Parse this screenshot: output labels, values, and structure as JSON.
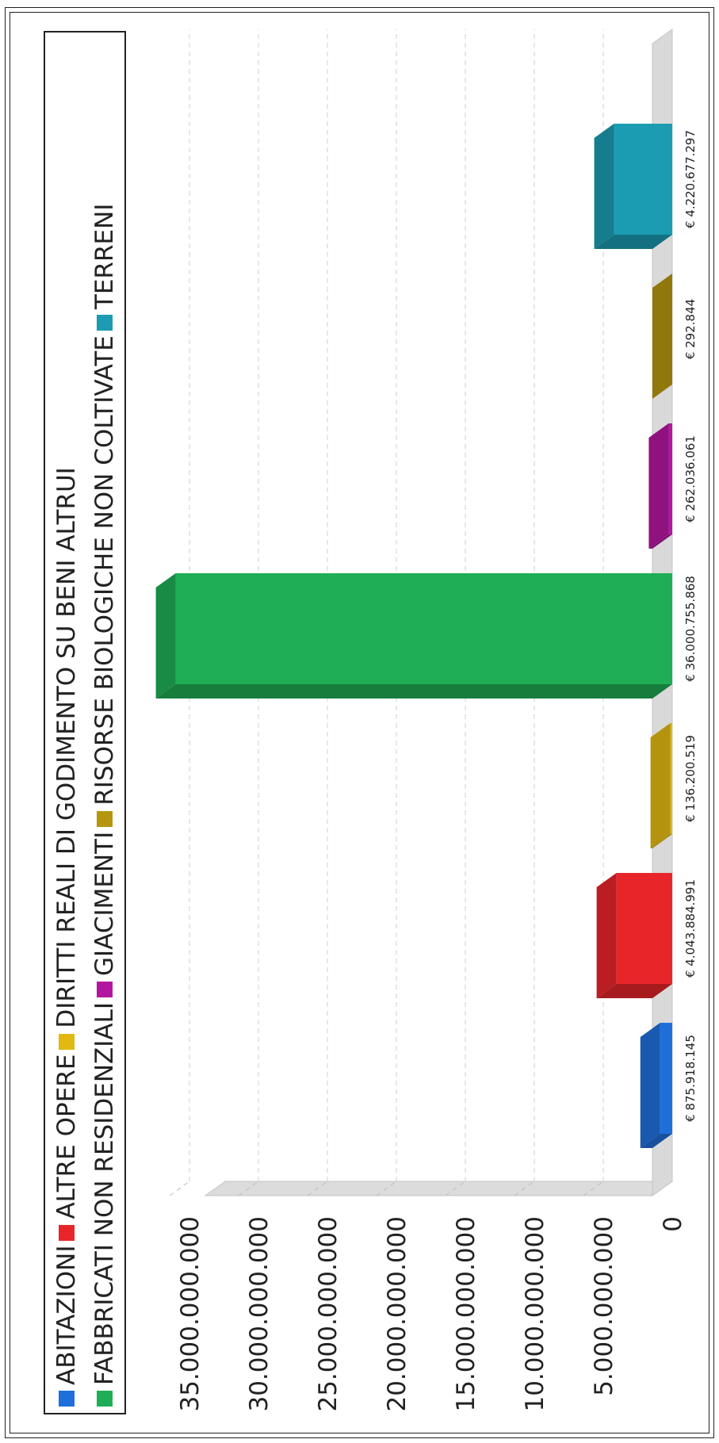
{
  "chart_data": {
    "type": "bar",
    "title": "",
    "xlabel": "",
    "ylabel": "",
    "ylim": [
      0,
      35000000000
    ],
    "grid": true,
    "legend_position": "top",
    "yticks": [
      "0",
      "5.000.000.000",
      "10.000.000.000",
      "15.000.000.000",
      "20.000.000.000",
      "25.000.000.000",
      "30.000.000.000",
      "35.000.000.000"
    ],
    "categories": [
      "ABITAZIONI",
      "ALTRE OPERE",
      "DIRITTI REALI DI GODIMENTO SU BENI ALTRUI",
      "FABBRICATI NON RESIDENZIALI",
      "GIACIMENTI",
      "RISORSE BIOLOGICHE NON COLTIVATE",
      "TERRENI"
    ],
    "values": [
      875918145,
      4043884991,
      136200519,
      36000755868,
      262036061,
      292844,
      4220677297
    ],
    "value_labels": [
      "€ 875.918.145",
      "€ 4.043.884.991",
      "€ 136.200.519",
      "€ 36.000.755.868",
      "€ 262.036.061",
      "€ 292.844",
      "€ 4.220.677.297"
    ],
    "colors": [
      "#1f6fdb",
      "#e8262a",
      "#e1b911",
      "#1fae55",
      "#b3179f",
      "#b5960e",
      "#1b9cb2"
    ],
    "legend_rows": [
      [
        0,
        1,
        2
      ],
      [
        3,
        4,
        5,
        6
      ]
    ]
  }
}
